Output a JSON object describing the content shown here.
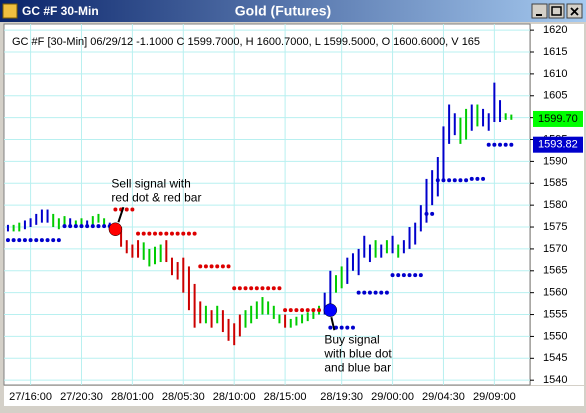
{
  "window": {
    "title": "GC #F 30-Min",
    "center_title": "Gold (Futures)"
  },
  "chart_data": {
    "type": "ohlc",
    "header": "GC #F [30-Min] 06/29/12 -1.1000 C 1599.7000, H 1600.7000, L 1599.5000, O 1600.6000, V 165",
    "xlim": [
      -0.7,
      92.3
    ],
    "xticks": [
      {
        "value": 4,
        "label": "27/16:00"
      },
      {
        "value": 13,
        "label": "27/20:30"
      },
      {
        "value": 22,
        "label": "28/01:00"
      },
      {
        "value": 31,
        "label": "28/05:30"
      },
      {
        "value": 40,
        "label": "28/10:00"
      },
      {
        "value": 49,
        "label": "28/15:00"
      },
      {
        "value": 59,
        "label": "28/19:30"
      },
      {
        "value": 68,
        "label": "29/00:00"
      },
      {
        "value": 77,
        "label": "29/04:30"
      },
      {
        "value": 86,
        "label": "29/09:00"
      }
    ],
    "ylim": [
      1538.9,
      1621.4
    ],
    "yticks": [
      1540,
      1545,
      1550,
      1555,
      1560,
      1565,
      1570,
      1575,
      1580,
      1585,
      1590,
      1595,
      1600,
      1605,
      1610,
      1615,
      1620
    ],
    "grid": true,
    "palette": {
      "g": "#00cc00",
      "b": "#0000cc",
      "r": "#cc0000"
    },
    "bars": {
      "high": [
        1575.5,
        1575.5,
        1576,
        1576.5,
        1577,
        1578,
        1579,
        1579,
        1578,
        1577,
        1577.5,
        1577,
        1576.5,
        1577,
        1576.5,
        1577.5,
        1578,
        1577,
        1576,
        1575.5,
        1575,
        1572,
        1571,
        1572,
        1571.5,
        1570,
        1570.5,
        1571,
        1572,
        1568,
        1567,
        1568,
        1566,
        1562,
        1558,
        1557,
        1556,
        1557,
        1556,
        1554,
        1553,
        1555,
        1556,
        1557,
        1558,
        1559,
        1558,
        1557,
        1555,
        1555,
        1554,
        1554.5,
        1555,
        1555.5,
        1556,
        1557,
        1560,
        1565,
        1564,
        1566,
        1568,
        1569,
        1570,
        1573,
        1571,
        1572,
        1571,
        1572,
        1573,
        1571,
        1572,
        1575,
        1576,
        1580,
        1586,
        1588,
        1591,
        1598,
        1603,
        1601,
        1600,
        1602,
        1603,
        1603,
        1602,
        1601,
        1608,
        1604,
        1601,
        1600.7
      ],
      "low": [
        1574,
        1574,
        1574,
        1574.5,
        1575,
        1575.5,
        1576,
        1576,
        1575,
        1574.5,
        1575,
        1575,
        1575,
        1575,
        1575,
        1575,
        1576,
        1575,
        1574.5,
        1573,
        1570.5,
        1569,
        1568,
        1568,
        1567.5,
        1566,
        1566.5,
        1567,
        1567,
        1564,
        1563,
        1560,
        1556,
        1552,
        1553,
        1553,
        1552,
        1553,
        1551,
        1549,
        1548,
        1550,
        1552,
        1553,
        1554,
        1555,
        1555,
        1554,
        1553,
        1552,
        1552,
        1552.5,
        1553,
        1553.5,
        1554,
        1555,
        1555,
        1557,
        1560,
        1561,
        1562,
        1565,
        1564,
        1568,
        1567,
        1568,
        1568,
        1569,
        1569,
        1568,
        1569,
        1570,
        1571,
        1574,
        1576,
        1580,
        1582,
        1586,
        1594,
        1596,
        1594,
        1595,
        1597,
        1598,
        1598,
        1597,
        1599,
        1599,
        1599.5,
        1599.5
      ],
      "colors": [
        "b",
        "g",
        "g",
        "b",
        "b",
        "b",
        "b",
        "b",
        "g",
        "g",
        "g",
        "b",
        "g",
        "g",
        "b",
        "g",
        "g",
        "g",
        "b",
        "r",
        "r",
        "r",
        "r",
        "r",
        "g",
        "g",
        "g",
        "g",
        "r",
        "r",
        "r",
        "r",
        "r",
        "r",
        "r",
        "g",
        "r",
        "g",
        "r",
        "r",
        "r",
        "r",
        "g",
        "g",
        "g",
        "g",
        "g",
        "g",
        "g",
        "r",
        "g",
        "g",
        "g",
        "g",
        "g",
        "g",
        "b",
        "b",
        "g",
        "g",
        "b",
        "b",
        "b",
        "b",
        "b",
        "g",
        "b",
        "g",
        "b",
        "g",
        "b",
        "b",
        "b",
        "b",
        "b",
        "b",
        "b",
        "b",
        "b",
        "b",
        "g",
        "g",
        "b",
        "g",
        "b",
        "b",
        "b",
        "b",
        "g",
        "g"
      ]
    },
    "red_dots": [
      null,
      null,
      null,
      null,
      null,
      null,
      null,
      null,
      null,
      null,
      null,
      null,
      null,
      null,
      null,
      null,
      null,
      null,
      null,
      1579,
      1579,
      1579,
      1579,
      1573.5,
      1573.5,
      1573.5,
      1573.5,
      1573.5,
      1573.5,
      1573.5,
      1573.5,
      1573.5,
      1573.5,
      1573.5,
      1566,
      1566,
      1566,
      1566,
      1566,
      1566,
      1561,
      1561,
      1561,
      1561,
      1561,
      1561,
      1561,
      1561,
      1561,
      1556,
      1556,
      1556,
      1556,
      1556,
      1556,
      1556,
      null,
      null,
      null,
      null,
      null,
      null,
      null,
      null,
      null,
      null,
      null,
      null,
      null,
      null,
      null,
      null,
      null,
      null,
      null,
      null,
      null,
      null,
      null,
      null,
      null,
      null,
      null,
      null,
      null,
      null,
      null,
      null,
      null,
      null
    ],
    "blue_dots": [
      1572,
      1572,
      1572,
      1572,
      1572,
      1572,
      1572,
      1572,
      1572,
      1572,
      1575.2,
      1575.2,
      1575.2,
      1575.2,
      1575.2,
      1575.2,
      1575.2,
      1575.2,
      1575.2,
      null,
      null,
      null,
      null,
      null,
      null,
      null,
      null,
      null,
      null,
      null,
      null,
      null,
      null,
      null,
      null,
      null,
      null,
      null,
      null,
      null,
      null,
      null,
      null,
      null,
      null,
      null,
      null,
      null,
      null,
      null,
      null,
      null,
      null,
      null,
      null,
      null,
      null,
      1552,
      1552,
      1552,
      1552,
      1552,
      1560,
      1560,
      1560,
      1560,
      1560,
      1560,
      1564,
      1564,
      1564,
      1564,
      1564,
      1564,
      1578,
      1578,
      1585.7,
      1585.7,
      1585.7,
      1585.7,
      1585.7,
      1585.7,
      1586,
      1586,
      1586,
      1593.8,
      1593.8,
      1593.8,
      1593.8,
      1593.8
    ],
    "signals": [
      {
        "x": 19,
        "value": 1574.5,
        "color": "#ff0000",
        "lines": [
          "Sell signal with",
          "red dot & red bar"
        ]
      },
      {
        "x": 57,
        "value": 1556,
        "color": "#0000ff",
        "lines": [
          "Buy signal",
          "with blue dot",
          "and blue bar"
        ]
      }
    ],
    "price_tags": [
      {
        "value": 1599.7,
        "label": "1599.70",
        "color": "#00ff00",
        "text_color": "#000000"
      },
      {
        "value": 1593.82,
        "color": "#0000cc",
        "text_color": "#ffffff"
      }
    ]
  }
}
